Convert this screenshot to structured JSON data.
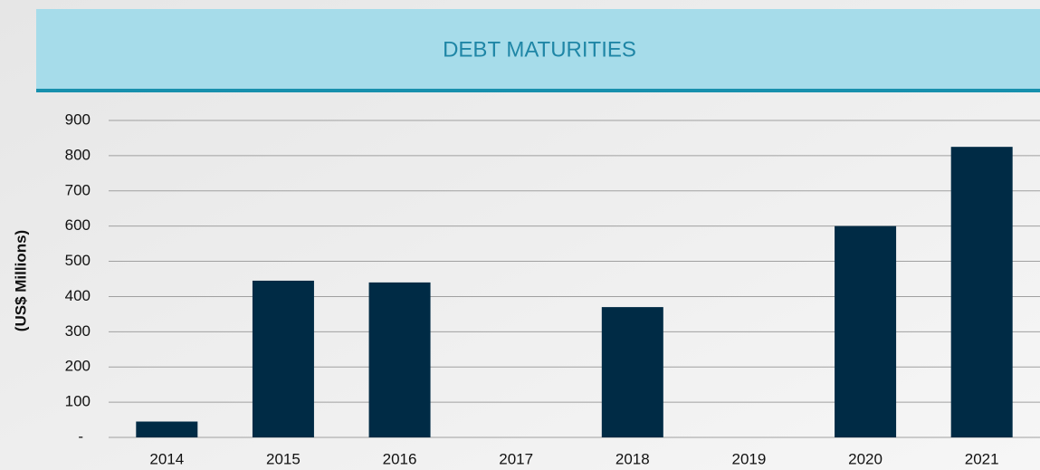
{
  "chart_data": {
    "type": "bar",
    "title": "DEBT MATURITIES",
    "y_label": "(US$ Millions)",
    "categories": [
      "2014",
      "2015",
      "2016",
      "2017",
      "2018",
      "2019",
      "2020",
      "2021"
    ],
    "values": [
      45,
      445,
      440,
      0,
      370,
      0,
      600,
      825
    ],
    "color": "#002b45",
    "ylim": [
      0,
      900
    ],
    "yticks": [
      {
        "value": 0,
        "label": "-"
      },
      100,
      200,
      300,
      400,
      500,
      600,
      700,
      800,
      900
    ],
    "grid": true
  }
}
